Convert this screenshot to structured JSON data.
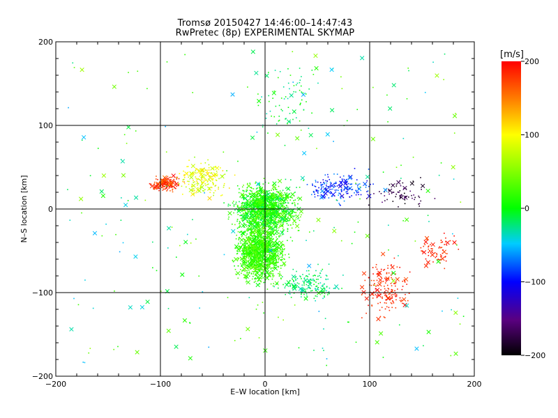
{
  "chart_data": {
    "type": "scatter",
    "title": "Tromsø 20150427 14:46:00–14:47:43",
    "subtitle": "RwPretec (8p) EXPERIMENTAL SKYMAP",
    "xlabel": "E–W location [km]",
    "ylabel": "N–S location [km]",
    "xlim": [
      -200,
      200
    ],
    "ylim": [
      -200,
      200
    ],
    "xticks": [
      -200,
      -100,
      0,
      100,
      200
    ],
    "yticks": [
      -200,
      -100,
      0,
      100,
      200
    ],
    "xtick_labels": [
      "−200",
      "−100",
      "0",
      "100",
      "200"
    ],
    "ytick_labels": [
      "−200",
      "−100",
      "0",
      "100",
      "200"
    ],
    "grid": true,
    "markers": [
      "small-dot",
      "cross"
    ],
    "colorbar": {
      "label": "[m/s]",
      "range": [
        -200,
        200
      ],
      "ticks": [
        200,
        100,
        0,
        -100,
        -200
      ],
      "tick_labels": [
        "200",
        "100",
        "0",
        "−100",
        "−200"
      ],
      "colormap": "rainbow: black(-200) → purple → blue(-100) → cyan → green(0) → yellow(100) → red(200)"
    },
    "clusters": [
      {
        "region": "central core",
        "x_center": 0,
        "y_center": 0,
        "spread_x": 25,
        "spread_y": 25,
        "velocity_range": [
          -20,
          40
        ],
        "density": "very high"
      },
      {
        "region": "central southern lobe",
        "x_center": -5,
        "y_center": -50,
        "spread_x": 20,
        "spread_y": 30,
        "velocity_range": [
          0,
          40
        ],
        "density": "very high"
      },
      {
        "region": "south-east tail",
        "x_center": 40,
        "y_center": -90,
        "spread_x": 25,
        "spread_y": 15,
        "velocity_range": [
          -40,
          0
        ],
        "density": "medium"
      },
      {
        "region": "north-west band",
        "x_center": -95,
        "y_center": 30,
        "spread_x": 12,
        "spread_y": 8,
        "velocity_range": [
          150,
          200
        ],
        "density": "medium"
      },
      {
        "region": "west mid",
        "x_center": -60,
        "y_center": 35,
        "spread_x": 20,
        "spread_y": 20,
        "velocity_range": [
          60,
          120
        ],
        "density": "medium"
      },
      {
        "region": "east black cluster",
        "x_center": 130,
        "y_center": 20,
        "spread_x": 25,
        "spread_y": 15,
        "velocity_range": [
          -200,
          -150
        ],
        "density": "low"
      },
      {
        "region": "east blue band",
        "x_center": 70,
        "y_center": 25,
        "spread_x": 30,
        "spread_y": 15,
        "velocity_range": [
          -120,
          -60
        ],
        "density": "medium"
      },
      {
        "region": "south-east red",
        "x_center": 115,
        "y_center": -95,
        "spread_x": 20,
        "spread_y": 30,
        "velocity_range": [
          170,
          200
        ],
        "density": "medium"
      },
      {
        "region": "east red",
        "x_center": 165,
        "y_center": -50,
        "spread_x": 15,
        "spread_y": 15,
        "velocity_range": [
          170,
          200
        ],
        "density": "low"
      },
      {
        "region": "northern cyan plume",
        "x_center": 20,
        "y_center": 130,
        "spread_x": 20,
        "spread_y": 40,
        "velocity_range": [
          -40,
          20
        ],
        "density": "low"
      }
    ]
  }
}
